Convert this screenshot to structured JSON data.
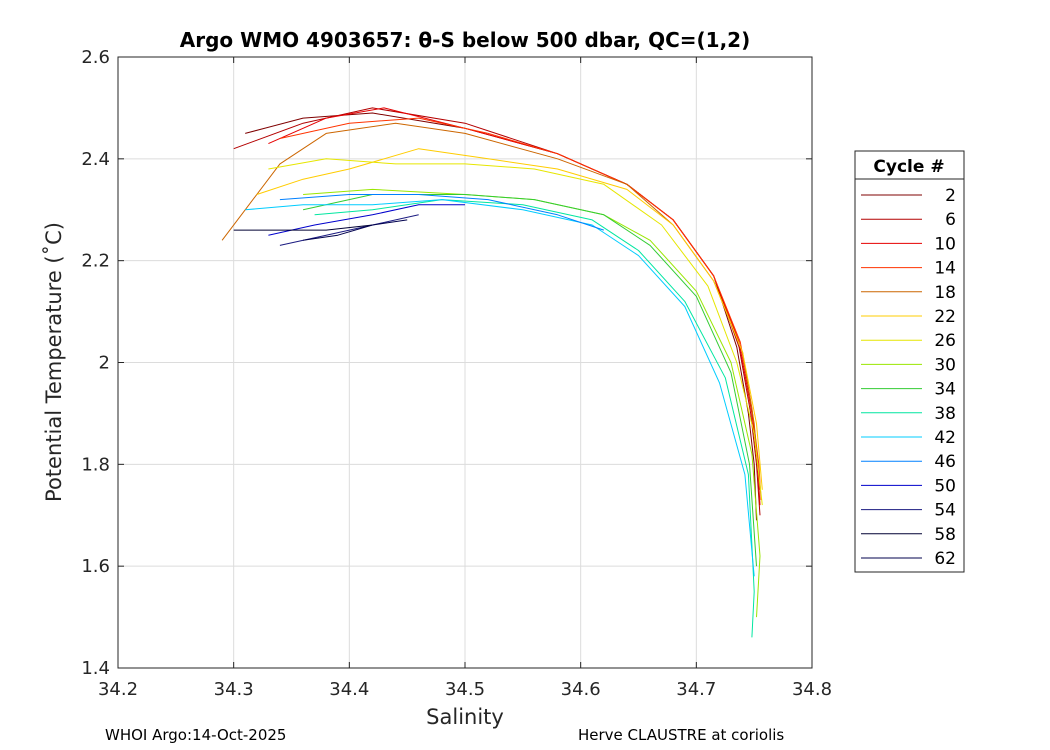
{
  "chart_data": {
    "type": "line",
    "title": "Argo WMO 4903657: θ-S below 500 dbar,  QC=(1,2)",
    "xlabel": "Salinity",
    "ylabel": "Potential Temperature (˚C)",
    "xlim": [
      34.2,
      34.8
    ],
    "ylim": [
      1.4,
      2.6
    ],
    "xticks": [
      34.2,
      34.3,
      34.4,
      34.5,
      34.6,
      34.7,
      34.8
    ],
    "xtick_labels": [
      "34.2",
      "34.3",
      "34.4",
      "34.5",
      "34.6",
      "34.7",
      "34.8"
    ],
    "yticks": [
      1.4,
      1.6,
      1.8,
      2.0,
      2.2,
      2.4,
      2.6
    ],
    "ytick_labels": [
      "1.4",
      "1.6",
      "1.8",
      "2",
      "2.2",
      "2.4",
      "2.6"
    ],
    "grid": true,
    "legend": {
      "title": "Cycle #",
      "position": "right-outside"
    },
    "series": [
      {
        "name": "2",
        "color": "#7f0000",
        "points": [
          [
            34.31,
            2.45
          ],
          [
            34.36,
            2.48
          ],
          [
            34.42,
            2.49
          ],
          [
            34.5,
            2.46
          ],
          [
            34.58,
            2.41
          ],
          [
            34.64,
            2.35
          ],
          [
            34.68,
            2.28
          ],
          [
            34.715,
            2.17
          ],
          [
            34.735,
            2.03
          ],
          [
            34.745,
            1.9
          ],
          [
            34.75,
            1.8
          ],
          [
            34.752,
            1.69
          ]
        ]
      },
      {
        "name": "6",
        "color": "#b30000",
        "points": [
          [
            34.3,
            2.42
          ],
          [
            34.36,
            2.47
          ],
          [
            34.42,
            2.5
          ],
          [
            34.5,
            2.47
          ],
          [
            34.58,
            2.41
          ],
          [
            34.64,
            2.35
          ],
          [
            34.68,
            2.28
          ],
          [
            34.715,
            2.17
          ],
          [
            34.737,
            2.03
          ],
          [
            34.747,
            1.9
          ],
          [
            34.752,
            1.8
          ],
          [
            34.755,
            1.7
          ]
        ]
      },
      {
        "name": "10",
        "color": "#e60000",
        "points": [
          [
            34.33,
            2.43
          ],
          [
            34.38,
            2.48
          ],
          [
            34.43,
            2.5
          ],
          [
            34.5,
            2.46
          ],
          [
            34.58,
            2.41
          ],
          [
            34.64,
            2.35
          ],
          [
            34.68,
            2.28
          ],
          [
            34.715,
            2.17
          ],
          [
            34.737,
            2.04
          ],
          [
            34.748,
            1.9
          ],
          [
            34.753,
            1.8
          ],
          [
            34.755,
            1.72
          ]
        ]
      },
      {
        "name": "14",
        "color": "#ff3300",
        "points": [
          [
            34.34,
            2.44
          ],
          [
            34.4,
            2.47
          ],
          [
            34.46,
            2.48
          ],
          [
            34.52,
            2.45
          ],
          [
            34.58,
            2.41
          ],
          [
            34.64,
            2.35
          ],
          [
            34.68,
            2.28
          ],
          [
            34.715,
            2.17
          ],
          [
            34.738,
            2.04
          ],
          [
            34.748,
            1.91
          ],
          [
            34.754,
            1.8
          ],
          [
            34.756,
            1.73
          ]
        ]
      },
      {
        "name": "18",
        "color": "#cc6600",
        "points": [
          [
            34.29,
            2.24
          ],
          [
            34.31,
            2.3
          ],
          [
            34.34,
            2.39
          ],
          [
            34.38,
            2.45
          ],
          [
            34.44,
            2.47
          ],
          [
            34.5,
            2.45
          ],
          [
            34.58,
            2.4
          ],
          [
            34.64,
            2.35
          ],
          [
            34.68,
            2.27
          ],
          [
            34.715,
            2.16
          ],
          [
            34.74,
            2.02
          ],
          [
            34.75,
            1.88
          ],
          [
            34.755,
            1.75
          ]
        ]
      },
      {
        "name": "22",
        "color": "#ffcc00",
        "points": [
          [
            34.32,
            2.33
          ],
          [
            34.36,
            2.36
          ],
          [
            34.4,
            2.38
          ],
          [
            34.46,
            2.42
          ],
          [
            34.52,
            2.4
          ],
          [
            34.58,
            2.38
          ],
          [
            34.64,
            2.34
          ],
          [
            34.68,
            2.27
          ],
          [
            34.715,
            2.16
          ],
          [
            34.74,
            2.02
          ],
          [
            34.752,
            1.88
          ],
          [
            34.757,
            1.75
          ]
        ]
      },
      {
        "name": "26",
        "color": "#e6e600",
        "points": [
          [
            34.33,
            2.38
          ],
          [
            34.38,
            2.4
          ],
          [
            34.44,
            2.39
          ],
          [
            34.5,
            2.39
          ],
          [
            34.56,
            2.38
          ],
          [
            34.62,
            2.35
          ],
          [
            34.67,
            2.27
          ],
          [
            34.71,
            2.15
          ],
          [
            34.735,
            2.0
          ],
          [
            34.75,
            1.86
          ],
          [
            34.757,
            1.72
          ]
        ]
      },
      {
        "name": "30",
        "color": "#99e600",
        "points": [
          [
            34.36,
            2.33
          ],
          [
            34.42,
            2.34
          ],
          [
            34.5,
            2.33
          ],
          [
            34.56,
            2.32
          ],
          [
            34.62,
            2.29
          ],
          [
            34.66,
            2.24
          ],
          [
            34.7,
            2.14
          ],
          [
            34.73,
            2.0
          ],
          [
            34.748,
            1.82
          ],
          [
            34.755,
            1.62
          ],
          [
            34.752,
            1.5
          ]
        ]
      },
      {
        "name": "34",
        "color": "#33cc33",
        "points": [
          [
            34.36,
            2.3
          ],
          [
            34.42,
            2.33
          ],
          [
            34.5,
            2.33
          ],
          [
            34.56,
            2.32
          ],
          [
            34.62,
            2.29
          ],
          [
            34.66,
            2.23
          ],
          [
            34.7,
            2.13
          ],
          [
            34.73,
            1.98
          ],
          [
            34.746,
            1.8
          ],
          [
            34.752,
            1.6
          ]
        ]
      },
      {
        "name": "38",
        "color": "#00e6a0",
        "points": [
          [
            34.37,
            2.29
          ],
          [
            34.42,
            2.3
          ],
          [
            34.48,
            2.32
          ],
          [
            34.55,
            2.31
          ],
          [
            34.61,
            2.28
          ],
          [
            34.65,
            2.22
          ],
          [
            34.69,
            2.12
          ],
          [
            34.725,
            1.97
          ],
          [
            34.745,
            1.78
          ],
          [
            34.75,
            1.55
          ],
          [
            34.748,
            1.46
          ]
        ]
      },
      {
        "name": "42",
        "color": "#00ccff",
        "points": [
          [
            34.31,
            2.3
          ],
          [
            34.36,
            2.31
          ],
          [
            34.42,
            2.31
          ],
          [
            34.48,
            2.32
          ],
          [
            34.55,
            2.3
          ],
          [
            34.61,
            2.27
          ],
          [
            34.65,
            2.21
          ],
          [
            34.69,
            2.11
          ],
          [
            34.72,
            1.96
          ],
          [
            34.742,
            1.78
          ],
          [
            34.75,
            1.58
          ]
        ]
      },
      {
        "name": "46",
        "color": "#0080ff",
        "points": [
          [
            34.34,
            2.32
          ],
          [
            34.4,
            2.33
          ],
          [
            34.46,
            2.33
          ],
          [
            34.52,
            2.32
          ],
          [
            34.58,
            2.29
          ],
          [
            34.62,
            2.26
          ]
        ]
      },
      {
        "name": "50",
        "color": "#0000cc",
        "points": [
          [
            34.33,
            2.25
          ],
          [
            34.37,
            2.27
          ],
          [
            34.42,
            2.29
          ],
          [
            34.46,
            2.31
          ],
          [
            34.5,
            2.31
          ]
        ]
      },
      {
        "name": "54",
        "color": "#1a1a80",
        "points": [
          [
            34.34,
            2.23
          ],
          [
            34.38,
            2.25
          ],
          [
            34.42,
            2.27
          ],
          [
            34.46,
            2.29
          ]
        ]
      },
      {
        "name": "58",
        "color": "#000033",
        "points": [
          [
            34.3,
            2.26
          ],
          [
            34.34,
            2.26
          ],
          [
            34.38,
            2.26
          ],
          [
            34.42,
            2.27
          ]
        ]
      },
      {
        "name": "62",
        "color": "#00004d",
        "points": [
          [
            34.36,
            2.24
          ],
          [
            34.39,
            2.25
          ],
          [
            34.42,
            2.27
          ],
          [
            34.45,
            2.28
          ]
        ]
      }
    ]
  },
  "footer": {
    "left": "WHOI Argo:14-Oct-2025",
    "right": "Herve CLAUSTRE at coriolis"
  }
}
